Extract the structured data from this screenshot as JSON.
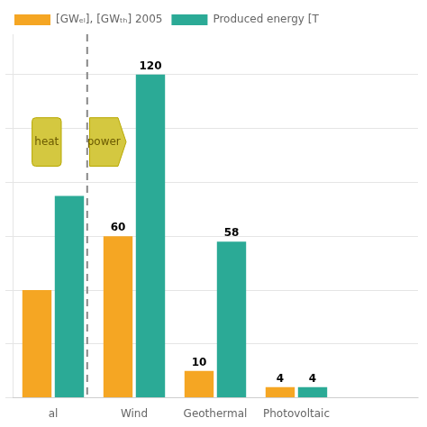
{
  "chart_data": {
    "type": "bar",
    "categories": [
      "al",
      "Wind",
      "Geothermal",
      "Photovoltaic",
      null
    ],
    "series": [
      {
        "name": "[GWₑₗ], [GWₜₕ] 2005",
        "color": "#F5A623",
        "values": [
          40,
          60,
          10,
          4,
          0
        ],
        "value_labels": [
          null,
          60,
          10,
          4,
          null
        ]
      },
      {
        "name": "Produced energy [T",
        "color": "#2BAA96",
        "values": [
          75,
          120,
          58,
          4,
          0
        ],
        "value_labels": [
          null,
          120,
          58,
          4,
          null
        ]
      }
    ],
    "ylim": [
      0,
      135
    ],
    "yticks": [
      0,
      20,
      40,
      60,
      80,
      100,
      120
    ],
    "grid": true,
    "legend": "top",
    "tick_labels": "x",
    "data_labels": true,
    "annotations": [
      {
        "text": "heat",
        "y": 95
      },
      {
        "text": "power",
        "y": 95
      }
    ]
  }
}
